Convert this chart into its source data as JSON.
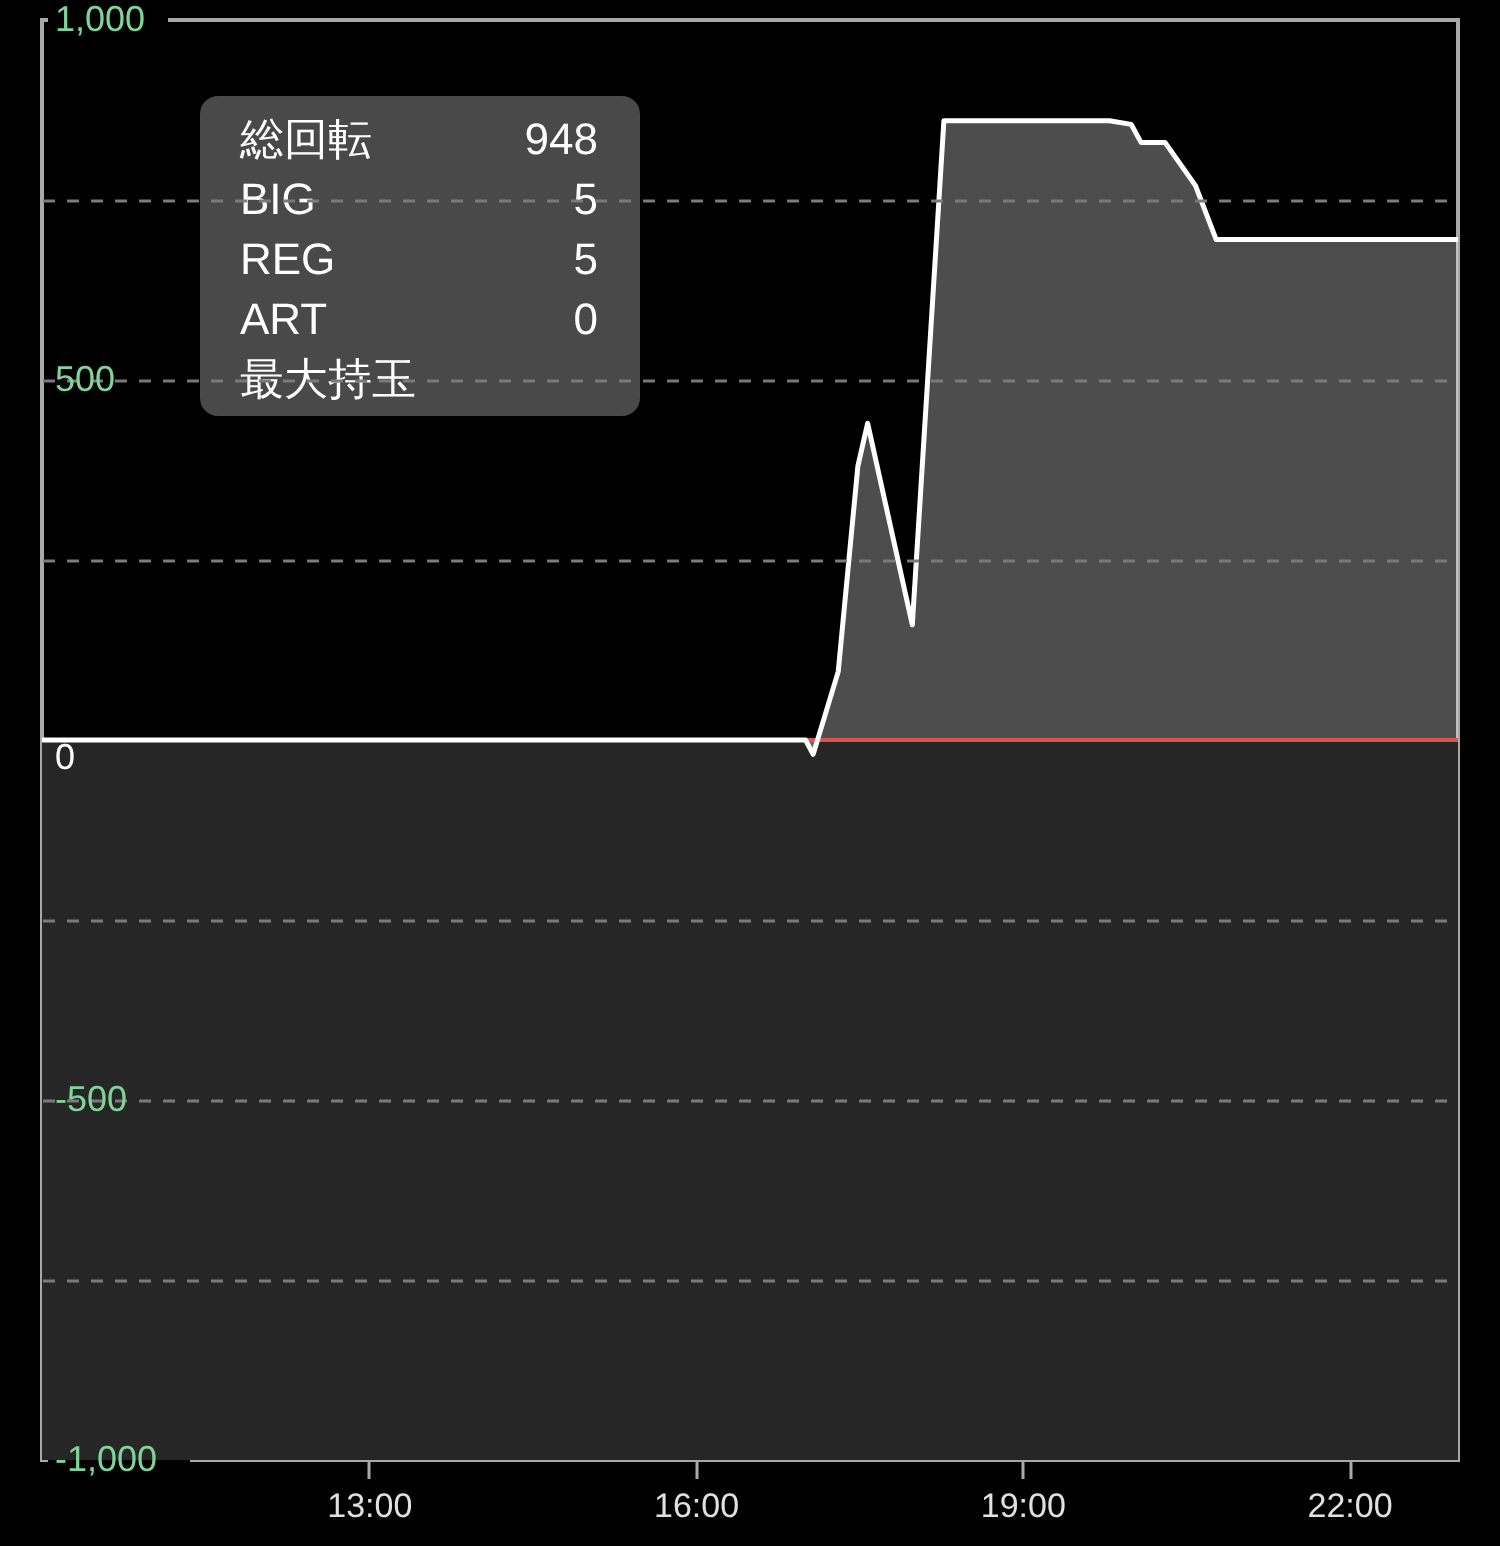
{
  "chart_data": {
    "type": "area",
    "x": [
      10,
      17.01,
      17.08,
      17.31,
      17.49,
      17.58,
      17.99,
      18.28,
      19.8,
      20.0,
      20.09,
      20.31,
      20.59,
      20.78,
      23
    ],
    "series": [
      {
        "color": "#ffffff",
        "values": [
          0,
          0,
          -20,
          95,
          380,
          440,
          160,
          860,
          860,
          855,
          830,
          830,
          770,
          695,
          695
        ]
      }
    ],
    "xlim": [
      10,
      23
    ],
    "xticks": [
      {
        "value": 13,
        "label": "13:00"
      },
      {
        "value": 16,
        "label": "16:00"
      },
      {
        "value": 19,
        "label": "19:00"
      },
      {
        "value": 22,
        "label": "22:00"
      }
    ],
    "ylim": [
      -1000,
      1000
    ],
    "yticks": [
      {
        "value": 1000,
        "label": "1,000"
      },
      {
        "value": 750,
        "label": null
      },
      500,
      {
        "value": 250,
        "label": null
      },
      0,
      {
        "value": -250,
        "label": null
      },
      -500,
      {
        "value": -750,
        "label": null
      },
      {
        "value": -1000,
        "label": "-1,000"
      }
    ],
    "grid": "y",
    "ref_lines": [
      {
        "axis": "y",
        "value": 0,
        "color": "#d9534f"
      }
    ],
    "bands": [
      {
        "axis": "y",
        "from": -1000,
        "to": 0,
        "color": "#262626"
      }
    ],
    "annotations": [
      "総回転 948",
      "BIG 5",
      "REG 5",
      "ART 0",
      "最大持玉"
    ]
  }
}
